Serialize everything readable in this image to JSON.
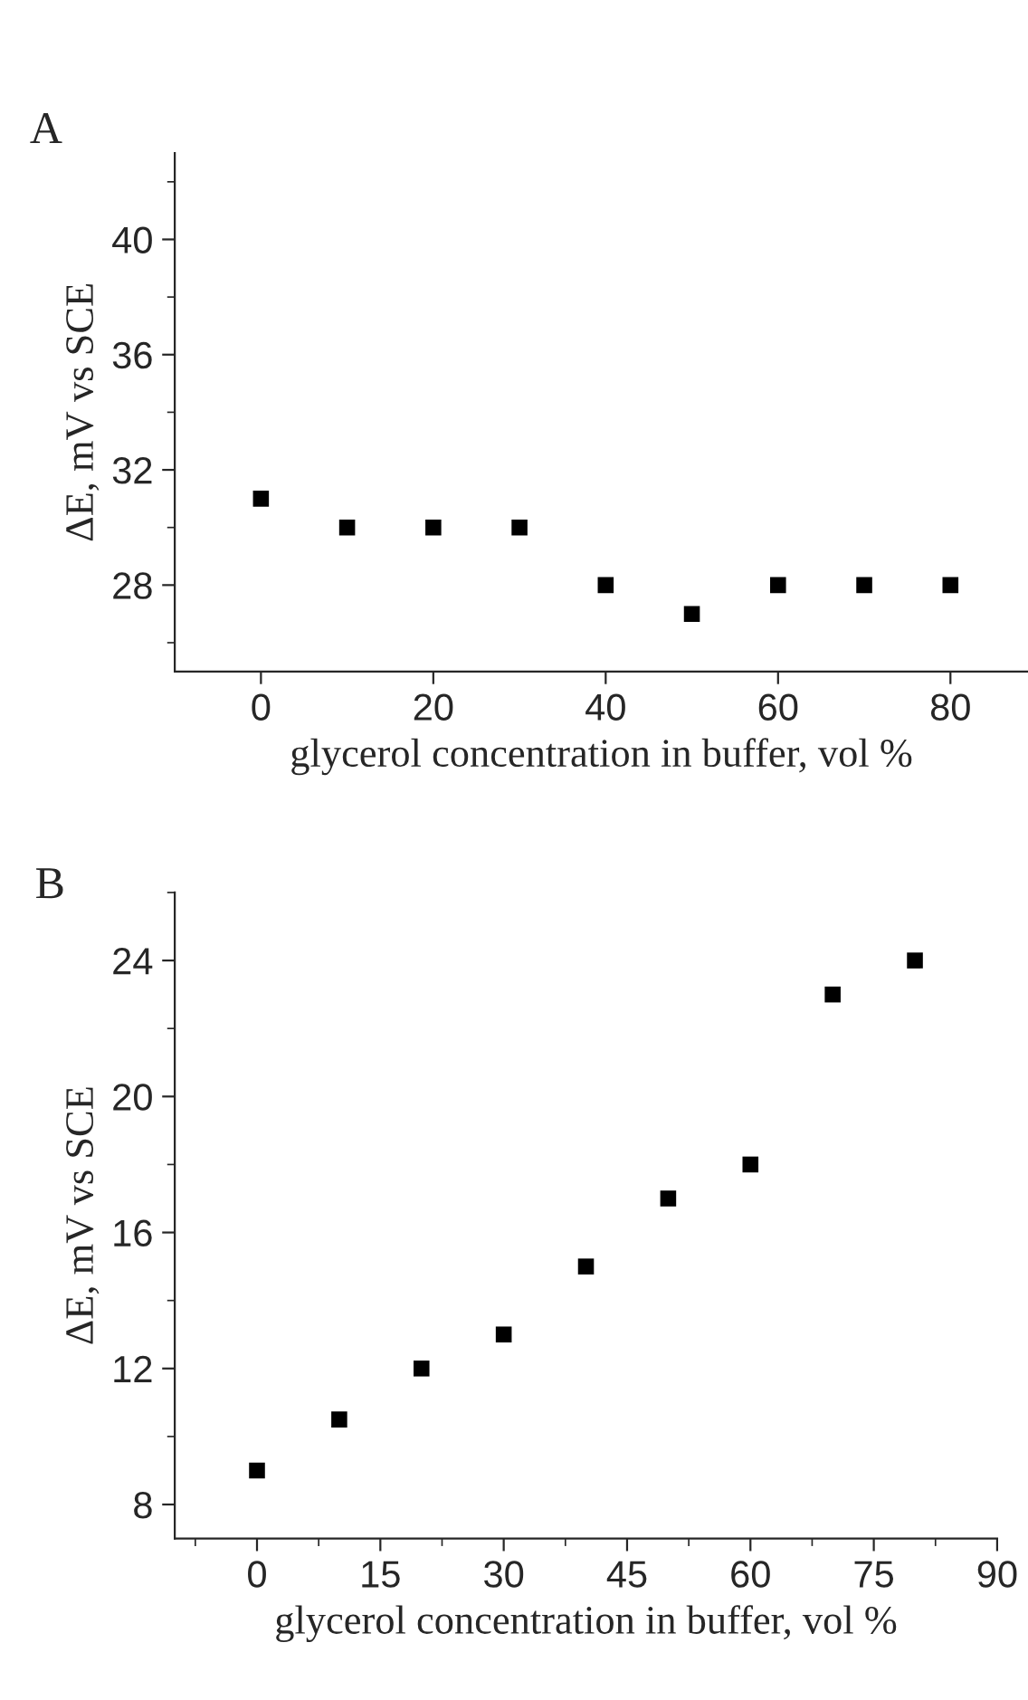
{
  "chart_data": [
    {
      "type": "scatter",
      "annotations": [
        "A"
      ],
      "xlabel": "glycerol concentration in buffer, vol %",
      "ylabel": "ΔE, mV vs SCE",
      "x": [
        0,
        10,
        20,
        30,
        40,
        50,
        60,
        70,
        80
      ],
      "series": [
        {
          "color": "#000000",
          "values": [
            31,
            30,
            30,
            30,
            28,
            27,
            28,
            28,
            28
          ]
        }
      ],
      "xlim": [
        -10,
        89
      ],
      "xticks": [
        0,
        20,
        40,
        60,
        80
      ],
      "ylim": [
        25,
        43
      ],
      "yticks": [
        28,
        32,
        36,
        40
      ],
      "marker": "square",
      "grid": false,
      "legend": false
    },
    {
      "type": "scatter",
      "annotations": [
        "B"
      ],
      "xlabel": "glycerol concentration in buffer, vol %",
      "ylabel": "ΔE, mV vs SCE",
      "x": [
        0,
        10,
        20,
        30,
        40,
        50,
        60,
        70,
        80
      ],
      "series": [
        {
          "color": "#000000",
          "values": [
            9,
            10.5,
            12,
            13,
            15,
            17,
            18,
            23,
            24
          ]
        }
      ],
      "xlim": [
        -10,
        90
      ],
      "xticks": [
        0,
        15,
        30,
        45,
        60,
        75,
        90
      ],
      "ylim": [
        7,
        26
      ],
      "yticks": [
        8,
        12,
        16,
        20,
        24
      ],
      "marker": "square",
      "grid": false,
      "legend": false
    }
  ]
}
